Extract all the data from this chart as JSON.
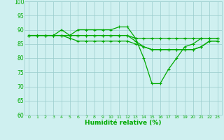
{
  "x": [
    0,
    1,
    2,
    3,
    4,
    5,
    6,
    7,
    8,
    9,
    10,
    11,
    12,
    13,
    14,
    15,
    16,
    17,
    18,
    19,
    20,
    21,
    22,
    23
  ],
  "lines": [
    {
      "y": [
        88,
        88,
        88,
        88,
        90,
        88,
        90,
        90,
        90,
        90,
        90,
        91,
        91,
        87,
        80,
        71,
        71,
        76,
        80,
        84,
        85,
        87,
        87,
        87
      ]
    },
    {
      "y": [
        88,
        88,
        88,
        88,
        88,
        88,
        88,
        88,
        88,
        88,
        88,
        88,
        88,
        86,
        84,
        83,
        83,
        83,
        83,
        83,
        83,
        84,
        86,
        86
      ]
    },
    {
      "y": [
        88,
        88,
        88,
        88,
        88,
        87,
        86,
        86,
        86,
        86,
        86,
        86,
        86,
        85,
        84,
        83,
        83,
        83,
        83,
        83,
        83,
        84,
        86,
        86
      ]
    },
    {
      "y": [
        88,
        88,
        88,
        88,
        88,
        88,
        88,
        88,
        88,
        88,
        88,
        88,
        88,
        87,
        87,
        87,
        87,
        87,
        87,
        87,
        87,
        87,
        87,
        87
      ]
    }
  ],
  "xlabel": "Humidité relative (%)",
  "xlim": [
    -0.5,
    23.5
  ],
  "ylim": [
    60,
    100
  ],
  "yticks": [
    60,
    65,
    70,
    75,
    80,
    85,
    90,
    95,
    100
  ],
  "xticks": [
    0,
    1,
    2,
    3,
    4,
    5,
    6,
    7,
    8,
    9,
    10,
    11,
    12,
    13,
    14,
    15,
    16,
    17,
    18,
    19,
    20,
    21,
    22,
    23
  ],
  "bg_color": "#cff0f0",
  "grid_color": "#99cccc",
  "line_color": "#00aa00",
  "xlabel_color": "#00aa00",
  "line_width": 0.9,
  "marker_size": 2.5
}
